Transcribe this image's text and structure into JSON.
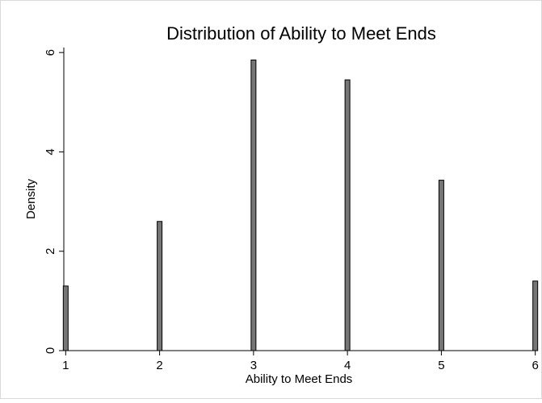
{
  "chart_data": {
    "type": "bar",
    "title": "Distribution of Ability to Meet Ends",
    "xlabel": "Ability to Meet Ends",
    "ylabel": "Density",
    "categories": [
      1,
      2,
      3,
      4,
      5,
      6
    ],
    "values": [
      1.3,
      2.6,
      5.85,
      5.45,
      3.43,
      1.4
    ],
    "xlim": [
      0.98,
      6.02
    ],
    "ylim": [
      0,
      6.1
    ],
    "xticks": [
      1,
      2,
      3,
      4,
      5,
      6
    ],
    "yticks": [
      0,
      2,
      4,
      6
    ],
    "grid": false,
    "legend": "none",
    "colors": {
      "bar_fill": "#767676",
      "bar_stroke": "#000000"
    }
  }
}
